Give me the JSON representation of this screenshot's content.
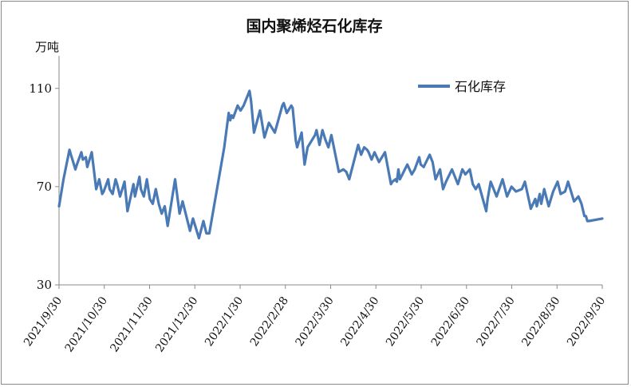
{
  "chart_data": {
    "type": "line",
    "title": "国内聚烯烃石化库存",
    "ylabel": "万吨",
    "xlabel": "",
    "ylim": [
      30,
      120
    ],
    "yticks": [
      30,
      70,
      110
    ],
    "grid": false,
    "legend_position": "top-right",
    "x_tick_labels": [
      "2021/9/30",
      "2021/10/30",
      "2021/11/30",
      "2021/12/30",
      "2022/1/30",
      "2022/2/28",
      "2022/3/30",
      "2022/4/30",
      "2022/5/30",
      "2022/6/30",
      "2022/7/30",
      "2022/8/30",
      "2022/9/30"
    ],
    "x_start": "2021-09-30",
    "x_end": "2022-09-30",
    "series": [
      {
        "name": "石化库存",
        "color": "#4a7ab5",
        "points": [
          [
            "2021-09-30",
            62
          ],
          [
            "2021-10-03",
            73
          ],
          [
            "2021-10-07",
            85
          ],
          [
            "2021-10-08",
            83
          ],
          [
            "2021-10-09",
            81
          ],
          [
            "2021-10-11",
            77
          ],
          [
            "2021-10-12",
            79
          ],
          [
            "2021-10-15",
            84
          ],
          [
            "2021-10-16",
            81
          ],
          [
            "2021-10-18",
            82
          ],
          [
            "2021-10-19",
            78
          ],
          [
            "2021-10-22",
            84
          ],
          [
            "2021-10-25",
            69
          ],
          [
            "2021-10-26",
            71
          ],
          [
            "2021-10-27",
            73
          ],
          [
            "2021-10-29",
            67
          ],
          [
            "2021-10-30",
            68
          ],
          [
            "2021-11-02",
            73
          ],
          [
            "2021-11-03",
            69
          ],
          [
            "2021-11-05",
            67
          ],
          [
            "2021-11-07",
            73
          ],
          [
            "2021-11-08",
            71
          ],
          [
            "2021-11-10",
            66
          ],
          [
            "2021-11-13",
            72
          ],
          [
            "2021-11-15",
            60
          ],
          [
            "2021-11-19",
            71
          ],
          [
            "2021-11-20",
            66
          ],
          [
            "2021-11-23",
            74
          ],
          [
            "2021-11-24",
            69
          ],
          [
            "2021-11-26",
            66
          ],
          [
            "2021-11-28",
            73
          ],
          [
            "2021-11-30",
            65
          ],
          [
            "2021-12-02",
            63
          ],
          [
            "2021-12-04",
            69
          ],
          [
            "2021-12-06",
            63
          ],
          [
            "2021-12-08",
            59
          ],
          [
            "2021-12-10",
            62
          ],
          [
            "2021-12-12",
            54
          ],
          [
            "2021-12-17",
            73
          ],
          [
            "2021-12-20",
            59
          ],
          [
            "2021-12-22",
            64
          ],
          [
            "2021-12-27",
            52
          ],
          [
            "2021-12-29",
            57
          ],
          [
            "2022-01-02",
            49
          ],
          [
            "2022-01-05",
            56
          ],
          [
            "2022-01-07",
            51
          ],
          [
            "2022-01-09",
            51
          ],
          [
            "2022-01-19",
            86
          ],
          [
            "2022-01-22",
            100
          ],
          [
            "2022-01-23",
            97
          ],
          [
            "2022-01-24",
            99
          ],
          [
            "2022-01-25",
            98
          ],
          [
            "2022-01-28",
            103
          ],
          [
            "2022-01-30",
            101
          ],
          [
            "2022-02-01",
            103
          ],
          [
            "2022-02-05",
            109
          ],
          [
            "2022-02-06",
            105
          ],
          [
            "2022-02-08",
            92
          ],
          [
            "2022-02-12",
            101
          ],
          [
            "2022-02-15",
            90
          ],
          [
            "2022-02-18",
            96
          ],
          [
            "2022-02-22",
            92
          ],
          [
            "2022-02-27",
            103
          ],
          [
            "2022-02-28",
            104
          ],
          [
            "2022-03-02",
            100
          ],
          [
            "2022-03-05",
            103
          ],
          [
            "2022-03-06",
            102
          ],
          [
            "2022-03-08",
            89
          ],
          [
            "2022-03-09",
            86
          ],
          [
            "2022-03-12",
            92
          ],
          [
            "2022-03-14",
            79
          ],
          [
            "2022-03-16",
            86
          ],
          [
            "2022-03-21",
            91
          ],
          [
            "2022-03-22",
            93
          ],
          [
            "2022-03-24",
            87
          ],
          [
            "2022-03-26",
            93
          ],
          [
            "2022-03-28",
            89
          ],
          [
            "2022-03-30",
            86
          ],
          [
            "2022-04-01",
            91
          ],
          [
            "2022-04-06",
            76
          ],
          [
            "2022-04-09",
            77
          ],
          [
            "2022-04-11",
            76
          ],
          [
            "2022-04-13",
            73
          ],
          [
            "2022-04-19",
            87
          ],
          [
            "2022-04-21",
            83
          ],
          [
            "2022-04-23",
            86
          ],
          [
            "2022-04-25",
            85
          ],
          [
            "2022-04-26",
            84
          ],
          [
            "2022-04-28",
            81
          ],
          [
            "2022-04-30",
            84
          ],
          [
            "2022-05-03",
            80
          ],
          [
            "2022-05-07",
            84
          ],
          [
            "2022-05-11",
            71
          ],
          [
            "2022-05-12",
            72
          ],
          [
            "2022-05-14",
            73
          ],
          [
            "2022-05-15",
            72
          ],
          [
            "2022-05-16",
            77
          ],
          [
            "2022-05-17",
            73
          ],
          [
            "2022-05-22",
            79
          ],
          [
            "2022-05-25",
            75
          ],
          [
            "2022-05-27",
            77
          ],
          [
            "2022-05-30",
            82
          ],
          [
            "2022-05-31",
            79
          ],
          [
            "2022-06-02",
            78
          ],
          [
            "2022-06-06",
            83
          ],
          [
            "2022-06-08",
            80
          ],
          [
            "2022-06-10",
            73
          ],
          [
            "2022-06-13",
            77
          ],
          [
            "2022-06-15",
            69
          ],
          [
            "2022-06-17",
            72
          ],
          [
            "2022-06-21",
            77
          ],
          [
            "2022-06-25",
            71
          ],
          [
            "2022-06-28",
            77
          ],
          [
            "2022-06-30",
            75
          ],
          [
            "2022-07-03",
            77
          ],
          [
            "2022-07-05",
            71
          ],
          [
            "2022-07-07",
            69
          ],
          [
            "2022-07-09",
            71
          ],
          [
            "2022-07-14",
            60
          ],
          [
            "2022-07-15",
            65
          ],
          [
            "2022-07-17",
            72
          ],
          [
            "2022-07-21",
            66
          ],
          [
            "2022-07-25",
            73
          ],
          [
            "2022-07-28",
            66
          ],
          [
            "2022-07-31",
            70
          ],
          [
            "2022-08-03",
            68
          ],
          [
            "2022-08-07",
            69
          ],
          [
            "2022-08-09",
            72
          ],
          [
            "2022-08-13",
            61
          ],
          [
            "2022-08-16",
            65
          ],
          [
            "2022-08-17",
            62
          ],
          [
            "2022-08-19",
            67
          ],
          [
            "2022-08-20",
            63
          ],
          [
            "2022-08-22",
            69
          ],
          [
            "2022-08-25",
            62
          ],
          [
            "2022-08-28",
            68
          ],
          [
            "2022-08-31",
            72
          ],
          [
            "2022-09-02",
            67
          ],
          [
            "2022-09-05",
            68
          ],
          [
            "2022-09-07",
            72
          ],
          [
            "2022-09-11",
            64
          ],
          [
            "2022-09-14",
            66
          ],
          [
            "2022-09-16",
            63
          ],
          [
            "2022-09-18",
            58
          ],
          [
            "2022-09-19",
            58
          ],
          [
            "2022-09-20",
            56
          ],
          [
            "2022-09-21",
            56
          ],
          [
            "2022-09-30",
            57
          ]
        ]
      }
    ]
  }
}
